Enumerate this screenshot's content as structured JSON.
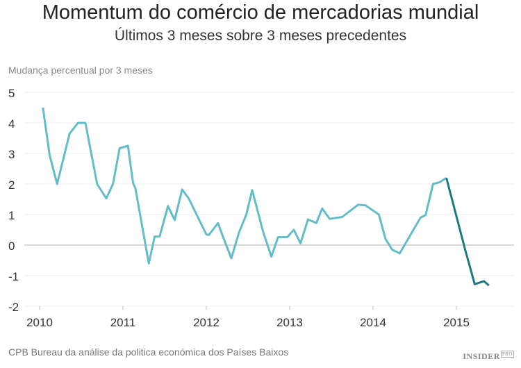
{
  "chart_data": {
    "type": "line",
    "title": "Momentum do comércio de mercadorias mundial",
    "subtitle": "Últimos 3 meses sobre 3 meses precedentes",
    "ylabel": "Mudança percentual por 3 meses",
    "xlabel": "",
    "xlim": [
      2009.85,
      2015.7
    ],
    "ylim": [
      -2,
      5
    ],
    "grid": true,
    "x_ticks": [
      "2010",
      "2011",
      "2012",
      "2013",
      "2014",
      "2015"
    ],
    "y_ticks": [
      "5",
      "4",
      "3",
      "2",
      "1",
      "0",
      "-1",
      "-2"
    ],
    "colors": {
      "history": "#63bcc8",
      "recent": "#1b7a80",
      "grid": "#eeeeee",
      "zero": "#cccccc"
    },
    "series": [
      {
        "x": [
          2010.04,
          2010.12,
          2010.21,
          2010.36,
          2010.46,
          2010.55,
          2010.69,
          2010.8,
          2010.88,
          2010.96,
          2011.06,
          2011.12,
          2011.15,
          2011.31,
          2011.38,
          2011.44,
          2011.54,
          2011.62,
          2011.71,
          2011.79,
          2012.0,
          2012.03,
          2012.14,
          2012.21,
          2012.3,
          2012.39,
          2012.48,
          2012.55,
          2012.68,
          2012.78,
          2012.86,
          2012.97,
          2013.05,
          2013.13,
          2013.22,
          2013.32,
          2013.39,
          2013.48,
          2013.63,
          2013.82,
          2013.91,
          2014.07,
          2014.15,
          2014.23,
          2014.32,
          2014.57,
          2014.63,
          2014.72,
          2014.8,
          2014.88
        ],
        "y": [
          4.5,
          2.95,
          2.0,
          3.65,
          4.0,
          4.0,
          2.0,
          1.53,
          2.0,
          3.17,
          3.25,
          2.05,
          1.85,
          -0.6,
          0.28,
          0.28,
          1.28,
          0.82,
          1.82,
          1.52,
          0.35,
          0.33,
          0.72,
          0.2,
          -0.43,
          0.4,
          1.0,
          1.8,
          0.45,
          -0.38,
          0.26,
          0.26,
          0.5,
          0.06,
          0.84,
          0.72,
          1.2,
          0.86,
          0.92,
          1.32,
          1.3,
          1.0,
          0.2,
          -0.15,
          -0.27,
          0.9,
          0.98,
          2.0,
          2.06,
          2.2
        ]
      },
      {
        "x": [
          2014.88,
          2015.11,
          2015.22,
          2015.33,
          2015.39
        ],
        "y": [
          2.2,
          -0.2,
          -1.28,
          -1.18,
          -1.32
        ]
      }
    ]
  },
  "source": "CPB Bureau da análise da politica económica dos Países Baixos",
  "logo": {
    "text": "INSIDER",
    "sup": "PRO"
  }
}
